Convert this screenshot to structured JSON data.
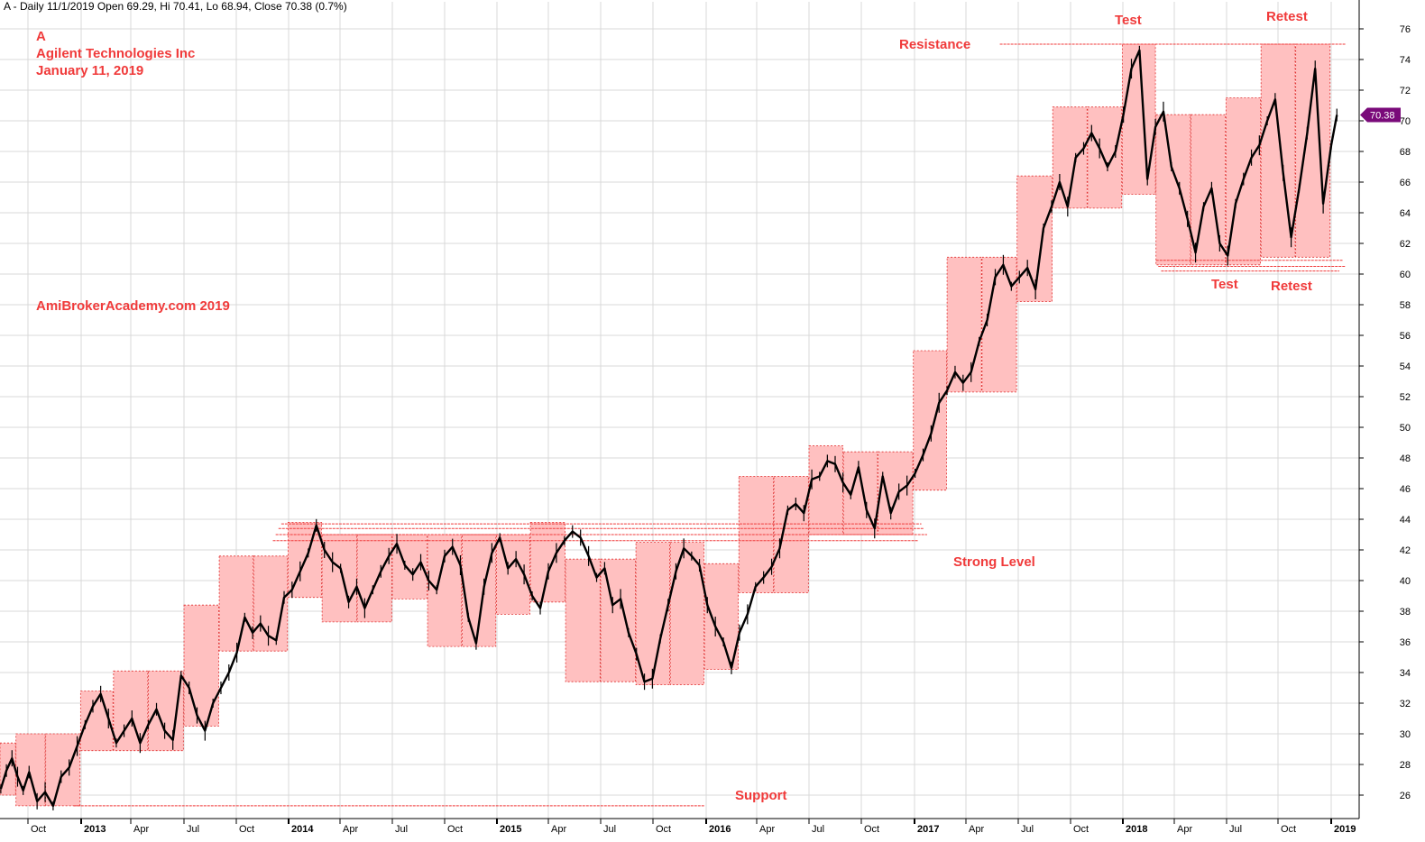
{
  "header": {
    "text": "A - Daily 11/1/2019 Open 69.29, Hi 70.41, Lo 68.94, Close 70.38 (0.7%)"
  },
  "annotations": {
    "ticker": "A",
    "company": "Agilent Technologies Inc",
    "date": "January 11, 2019",
    "watermark": "AmiBrokerAcademy.com  2019",
    "resistance": "Resistance",
    "test_top": "Test",
    "retest_top": "Retest",
    "test_bottom": "Test",
    "retest_bottom": "Retest",
    "strong_level": "Strong Level",
    "support": "Support"
  },
  "colors": {
    "accent": "#f03a3a",
    "box_fill": "#ffc0c0",
    "box_edge": "#e03030",
    "price_line": "#000000",
    "tag": "#7a0a7a",
    "grid": "#d8d8d8"
  },
  "chart_data": {
    "type": "line",
    "ylim": [
      24.8,
      77
    ],
    "x_date_range": [
      "2012-07-23",
      "2019-01-11"
    ],
    "grid": true,
    "y_ticks": [
      26,
      28,
      30,
      32,
      34,
      36,
      38,
      40,
      42,
      44,
      46,
      48,
      50,
      52,
      54,
      56,
      58,
      60,
      62,
      64,
      66,
      68,
      70,
      72,
      74,
      76
    ],
    "x_ticks": [
      {
        "label": "Oct",
        "date": "2012-10-01",
        "year": false
      },
      {
        "label": "2013",
        "date": "2013-01-02",
        "year": true
      },
      {
        "label": "Apr",
        "date": "2013-04-01",
        "year": false
      },
      {
        "label": "Jul",
        "date": "2013-07-01",
        "year": false
      },
      {
        "label": "Oct",
        "date": "2013-10-01",
        "year": false
      },
      {
        "label": "2014",
        "date": "2014-01-02",
        "year": true
      },
      {
        "label": "Apr",
        "date": "2014-04-01",
        "year": false
      },
      {
        "label": "Jul",
        "date": "2014-07-01",
        "year": false
      },
      {
        "label": "Oct",
        "date": "2014-10-01",
        "year": false
      },
      {
        "label": "2015",
        "date": "2015-01-02",
        "year": true
      },
      {
        "label": "Apr",
        "date": "2015-04-01",
        "year": false
      },
      {
        "label": "Jul",
        "date": "2015-07-01",
        "year": false
      },
      {
        "label": "Oct",
        "date": "2015-10-01",
        "year": false
      },
      {
        "label": "2016",
        "date": "2016-01-04",
        "year": true
      },
      {
        "label": "Apr",
        "date": "2016-04-01",
        "year": false
      },
      {
        "label": "Jul",
        "date": "2016-07-01",
        "year": false
      },
      {
        "label": "Oct",
        "date": "2016-10-03",
        "year": false
      },
      {
        "label": "2017",
        "date": "2017-01-03",
        "year": true
      },
      {
        "label": "Apr",
        "date": "2017-04-03",
        "year": false
      },
      {
        "label": "Jul",
        "date": "2017-07-03",
        "year": false
      },
      {
        "label": "Oct",
        "date": "2017-10-02",
        "year": false
      },
      {
        "label": "2018",
        "date": "2018-01-02",
        "year": true
      },
      {
        "label": "Apr",
        "date": "2018-04-02",
        "year": false
      },
      {
        "label": "Jul",
        "date": "2018-07-02",
        "year": false
      },
      {
        "label": "Oct",
        "date": "2018-10-01",
        "year": false
      },
      {
        "label": "2019",
        "date": "2019-01-02",
        "year": true
      }
    ],
    "last_price": "70.38",
    "series": [
      {
        "values": [
          [
            "2012-07-25",
            26.4
          ],
          [
            "2012-08-08",
            27.6
          ],
          [
            "2012-08-22",
            28.4
          ],
          [
            "2012-09-05",
            27.2
          ],
          [
            "2012-09-19",
            26.3
          ],
          [
            "2012-10-03",
            27.5
          ],
          [
            "2012-10-17",
            25.6
          ],
          [
            "2012-10-31",
            26.2
          ],
          [
            "2012-11-14",
            25.3
          ],
          [
            "2012-11-28",
            27.2
          ],
          [
            "2012-12-12",
            27.8
          ],
          [
            "2012-12-26",
            29.2
          ],
          [
            "2013-01-09",
            30.6
          ],
          [
            "2013-01-23",
            31.8
          ],
          [
            "2013-02-06",
            32.6
          ],
          [
            "2013-02-20",
            31.0
          ],
          [
            "2013-03-06",
            29.4
          ],
          [
            "2013-03-20",
            30.2
          ],
          [
            "2013-04-03",
            31.0
          ],
          [
            "2013-04-17",
            29.4
          ],
          [
            "2013-05-01",
            30.6
          ],
          [
            "2013-05-15",
            31.6
          ],
          [
            "2013-05-29",
            30.2
          ],
          [
            "2013-06-12",
            29.6
          ],
          [
            "2013-06-26",
            33.8
          ],
          [
            "2013-07-10",
            33.0
          ],
          [
            "2013-07-24",
            31.2
          ],
          [
            "2013-08-07",
            30.2
          ],
          [
            "2013-08-21",
            32.0
          ],
          [
            "2013-09-04",
            33.0
          ],
          [
            "2013-09-18",
            34.0
          ],
          [
            "2013-10-02",
            35.3
          ],
          [
            "2013-10-16",
            37.6
          ],
          [
            "2013-10-30",
            36.6
          ],
          [
            "2013-11-13",
            37.2
          ],
          [
            "2013-11-27",
            36.4
          ],
          [
            "2013-12-11",
            36.1
          ],
          [
            "2013-12-25",
            38.9
          ],
          [
            "2014-01-08",
            39.4
          ],
          [
            "2014-01-22",
            40.6
          ],
          [
            "2014-02-05",
            41.8
          ],
          [
            "2014-02-19",
            43.6
          ],
          [
            "2014-03-05",
            42.0
          ],
          [
            "2014-03-19",
            41.2
          ],
          [
            "2014-04-02",
            40.8
          ],
          [
            "2014-04-16",
            38.6
          ],
          [
            "2014-04-30",
            39.6
          ],
          [
            "2014-05-14",
            38.2
          ],
          [
            "2014-05-28",
            39.4
          ],
          [
            "2014-06-11",
            40.6
          ],
          [
            "2014-06-25",
            41.6
          ],
          [
            "2014-07-09",
            42.4
          ],
          [
            "2014-07-23",
            41.0
          ],
          [
            "2014-08-06",
            40.4
          ],
          [
            "2014-08-20",
            41.2
          ],
          [
            "2014-09-03",
            40.0
          ],
          [
            "2014-09-17",
            39.4
          ],
          [
            "2014-10-01",
            41.6
          ],
          [
            "2014-10-15",
            42.2
          ],
          [
            "2014-10-29",
            41.0
          ],
          [
            "2014-11-12",
            37.6
          ],
          [
            "2014-11-26",
            35.9
          ],
          [
            "2014-12-10",
            39.6
          ],
          [
            "2014-12-24",
            41.8
          ],
          [
            "2015-01-07",
            42.8
          ],
          [
            "2015-01-21",
            40.8
          ],
          [
            "2015-02-04",
            41.4
          ],
          [
            "2015-02-18",
            40.4
          ],
          [
            "2015-03-04",
            39.0
          ],
          [
            "2015-03-18",
            38.2
          ],
          [
            "2015-04-01",
            40.6
          ],
          [
            "2015-04-15",
            41.8
          ],
          [
            "2015-04-29",
            42.6
          ],
          [
            "2015-05-13",
            43.2
          ],
          [
            "2015-05-27",
            42.8
          ],
          [
            "2015-06-10",
            41.6
          ],
          [
            "2015-06-24",
            40.2
          ],
          [
            "2015-07-08",
            40.8
          ],
          [
            "2015-07-22",
            38.4
          ],
          [
            "2015-08-05",
            38.8
          ],
          [
            "2015-08-19",
            36.6
          ],
          [
            "2015-09-02",
            35.2
          ],
          [
            "2015-09-16",
            33.4
          ],
          [
            "2015-09-30",
            33.6
          ],
          [
            "2015-10-14",
            36.2
          ],
          [
            "2015-10-28",
            38.4
          ],
          [
            "2015-11-11",
            40.6
          ],
          [
            "2015-11-25",
            42.1
          ],
          [
            "2015-12-09",
            41.6
          ],
          [
            "2015-12-23",
            41.0
          ],
          [
            "2016-01-06",
            38.4
          ],
          [
            "2016-01-20",
            37.0
          ],
          [
            "2016-02-03",
            36.0
          ],
          [
            "2016-02-17",
            34.3
          ],
          [
            "2016-03-02",
            36.6
          ],
          [
            "2016-03-16",
            37.8
          ],
          [
            "2016-03-30",
            39.6
          ],
          [
            "2016-04-13",
            40.2
          ],
          [
            "2016-04-27",
            40.9
          ],
          [
            "2016-05-11",
            42.1
          ],
          [
            "2016-05-25",
            44.6
          ],
          [
            "2016-06-08",
            45.0
          ],
          [
            "2016-06-22",
            44.4
          ],
          [
            "2016-07-06",
            46.6
          ],
          [
            "2016-07-20",
            46.8
          ],
          [
            "2016-08-03",
            47.8
          ],
          [
            "2016-08-17",
            47.6
          ],
          [
            "2016-08-31",
            46.4
          ],
          [
            "2016-09-14",
            45.6
          ],
          [
            "2016-09-28",
            47.4
          ],
          [
            "2016-10-12",
            44.6
          ],
          [
            "2016-10-26",
            43.4
          ],
          [
            "2016-11-09",
            46.8
          ],
          [
            "2016-11-23",
            44.4
          ],
          [
            "2016-12-07",
            45.8
          ],
          [
            "2016-12-21",
            46.2
          ],
          [
            "2017-01-04",
            47.0
          ],
          [
            "2017-01-18",
            48.2
          ],
          [
            "2017-02-01",
            49.6
          ],
          [
            "2017-02-15",
            51.6
          ],
          [
            "2017-03-01",
            52.4
          ],
          [
            "2017-03-15",
            53.6
          ],
          [
            "2017-03-29",
            52.9
          ],
          [
            "2017-04-12",
            53.6
          ],
          [
            "2017-04-26",
            55.6
          ],
          [
            "2017-05-10",
            57.0
          ],
          [
            "2017-05-24",
            59.8
          ],
          [
            "2017-06-07",
            60.6
          ],
          [
            "2017-06-21",
            59.2
          ],
          [
            "2017-07-05",
            59.8
          ],
          [
            "2017-07-19",
            60.4
          ],
          [
            "2017-08-02",
            59.0
          ],
          [
            "2017-08-16",
            63.0
          ],
          [
            "2017-08-30",
            64.4
          ],
          [
            "2017-09-13",
            66.0
          ],
          [
            "2017-09-27",
            64.4
          ],
          [
            "2017-10-11",
            67.6
          ],
          [
            "2017-10-25",
            68.2
          ],
          [
            "2017-11-08",
            69.2
          ],
          [
            "2017-11-22",
            68.2
          ],
          [
            "2017-12-06",
            67.0
          ],
          [
            "2017-12-20",
            68.0
          ],
          [
            "2018-01-03",
            70.4
          ],
          [
            "2018-01-17",
            73.4
          ],
          [
            "2018-01-31",
            74.6
          ],
          [
            "2018-02-14",
            66.2
          ],
          [
            "2018-02-28",
            69.6
          ],
          [
            "2018-03-14",
            70.6
          ],
          [
            "2018-03-28",
            67.0
          ],
          [
            "2018-04-11",
            65.6
          ],
          [
            "2018-04-25",
            63.6
          ],
          [
            "2018-05-09",
            61.4
          ],
          [
            "2018-05-23",
            64.4
          ],
          [
            "2018-06-06",
            65.6
          ],
          [
            "2018-06-20",
            62.0
          ],
          [
            "2018-07-04",
            61.2
          ],
          [
            "2018-07-18",
            64.6
          ],
          [
            "2018-08-01",
            66.2
          ],
          [
            "2018-08-15",
            67.6
          ],
          [
            "2018-08-29",
            68.4
          ],
          [
            "2018-09-12",
            70.0
          ],
          [
            "2018-09-26",
            71.4
          ],
          [
            "2018-10-10",
            66.6
          ],
          [
            "2018-10-24",
            62.4
          ],
          [
            "2018-11-07",
            65.6
          ],
          [
            "2018-11-21",
            69.2
          ],
          [
            "2018-12-05",
            73.4
          ],
          [
            "2018-12-19",
            64.6
          ],
          [
            "2019-01-02",
            68.4
          ],
          [
            "2019-01-11",
            70.38
          ]
        ]
      }
    ],
    "range_boxes": [
      [
        "2012-07-23",
        "2012-08-31",
        26.0,
        29.4
      ],
      [
        "2012-09-01",
        "2012-10-31",
        25.3,
        30.0
      ],
      [
        "2012-11-01",
        "2012-12-31",
        25.3,
        30.0
      ],
      [
        "2013-01-01",
        "2013-02-28",
        28.9,
        32.8
      ],
      [
        "2013-03-01",
        "2013-04-30",
        28.9,
        34.1
      ],
      [
        "2013-05-01",
        "2013-06-30",
        28.9,
        34.1
      ],
      [
        "2013-07-01",
        "2013-08-31",
        30.5,
        38.4
      ],
      [
        "2013-09-01",
        "2013-10-31",
        35.4,
        41.6
      ],
      [
        "2013-11-01",
        "2013-12-31",
        35.4,
        41.6
      ],
      [
        "2014-01-01",
        "2014-02-28",
        38.9,
        43.8
      ],
      [
        "2014-03-01",
        "2014-04-30",
        37.3,
        43.0
      ],
      [
        "2014-05-01",
        "2014-06-30",
        37.3,
        43.0
      ],
      [
        "2014-07-01",
        "2014-08-31",
        38.8,
        43.0
      ],
      [
        "2014-09-01",
        "2014-10-31",
        35.7,
        43.0
      ],
      [
        "2014-11-01",
        "2014-12-31",
        35.7,
        43.0
      ],
      [
        "2015-01-01",
        "2015-02-28",
        37.8,
        43.0
      ],
      [
        "2015-03-01",
        "2015-04-30",
        38.6,
        43.8
      ],
      [
        "2015-05-01",
        "2015-06-30",
        33.4,
        41.4
      ],
      [
        "2015-07-01",
        "2015-08-31",
        33.4,
        41.4
      ],
      [
        "2015-09-01",
        "2015-10-31",
        33.2,
        42.5
      ],
      [
        "2015-11-01",
        "2015-12-31",
        33.2,
        42.5
      ],
      [
        "2016-01-01",
        "2016-02-29",
        34.2,
        41.1
      ],
      [
        "2016-03-01",
        "2016-04-30",
        39.2,
        46.8
      ],
      [
        "2016-05-01",
        "2016-06-30",
        39.2,
        46.8
      ],
      [
        "2016-07-01",
        "2016-08-31",
        43.0,
        48.8
      ],
      [
        "2016-09-01",
        "2016-10-31",
        43.0,
        48.4
      ],
      [
        "2016-11-01",
        "2016-12-31",
        43.0,
        48.4
      ],
      [
        "2017-01-01",
        "2017-02-28",
        45.9,
        55.0
      ],
      [
        "2017-03-01",
        "2017-04-30",
        52.3,
        61.1
      ],
      [
        "2017-05-01",
        "2017-06-30",
        52.3,
        61.1
      ],
      [
        "2017-07-01",
        "2017-08-31",
        58.2,
        66.4
      ],
      [
        "2017-09-01",
        "2017-10-31",
        64.3,
        70.9
      ],
      [
        "2017-11-01",
        "2017-12-31",
        64.3,
        70.9
      ],
      [
        "2018-01-01",
        "2018-02-28",
        65.2,
        75.0
      ],
      [
        "2018-03-01",
        "2018-04-30",
        60.6,
        70.4
      ],
      [
        "2018-05-01",
        "2018-06-30",
        60.6,
        70.4
      ],
      [
        "2018-07-01",
        "2018-08-31",
        60.6,
        71.5
      ],
      [
        "2018-09-01",
        "2018-10-31",
        61.1,
        75.0
      ],
      [
        "2018-11-01",
        "2018-12-31",
        61.1,
        75.0
      ]
    ],
    "levels": [
      {
        "name": "resistance",
        "y": 75.0,
        "x0": "2017-06-01",
        "x1": "2019-01-25"
      },
      {
        "name": "support",
        "y": 25.3,
        "x0": "2012-12-20",
        "x1": "2016-01-01"
      },
      {
        "name": "strong",
        "y": 43.7,
        "x0": "2013-12-20",
        "x1": "2017-01-15"
      },
      {
        "name": "strong",
        "y": 43.4,
        "x0": "2013-12-15",
        "x1": "2017-01-20"
      },
      {
        "name": "strong",
        "y": 43.0,
        "x0": "2013-12-10",
        "x1": "2017-01-25"
      },
      {
        "name": "strong",
        "y": 42.6,
        "x0": "2013-12-05",
        "x1": "2017-01-10"
      },
      {
        "name": "support_recent",
        "y": 60.9,
        "x0": "2018-03-01",
        "x1": "2019-01-20"
      },
      {
        "name": "support_recent",
        "y": 60.5,
        "x0": "2018-03-05",
        "x1": "2019-01-25"
      },
      {
        "name": "support_recent",
        "y": 60.2,
        "x0": "2018-03-10",
        "x1": "2019-01-15"
      }
    ]
  }
}
